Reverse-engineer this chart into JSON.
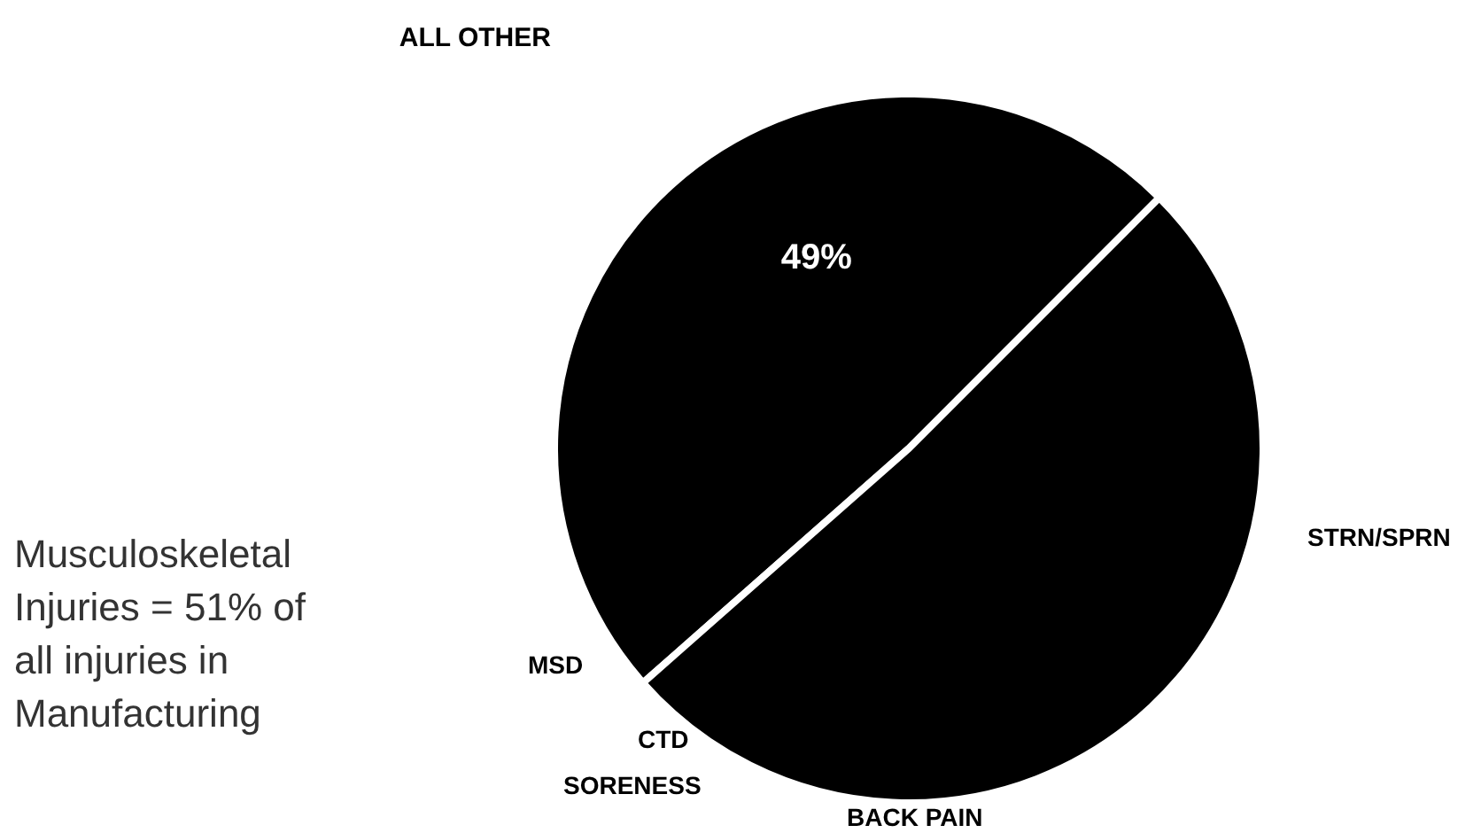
{
  "chart_data": {
    "type": "pie",
    "categories": [
      "ALL OTHER",
      null
    ],
    "values": [
      49,
      51
    ],
    "colors": [
      "#000000",
      "#000000"
    ],
    "value_labels": [
      "49%",
      null
    ],
    "legend": false,
    "annotations": [
      "STRN/SPRN",
      "BACK PAIN",
      "SORENESS",
      "CTD",
      "MSD",
      "Musculoskeletal Injuries = 51% of all injuries in Manufacturing"
    ]
  }
}
